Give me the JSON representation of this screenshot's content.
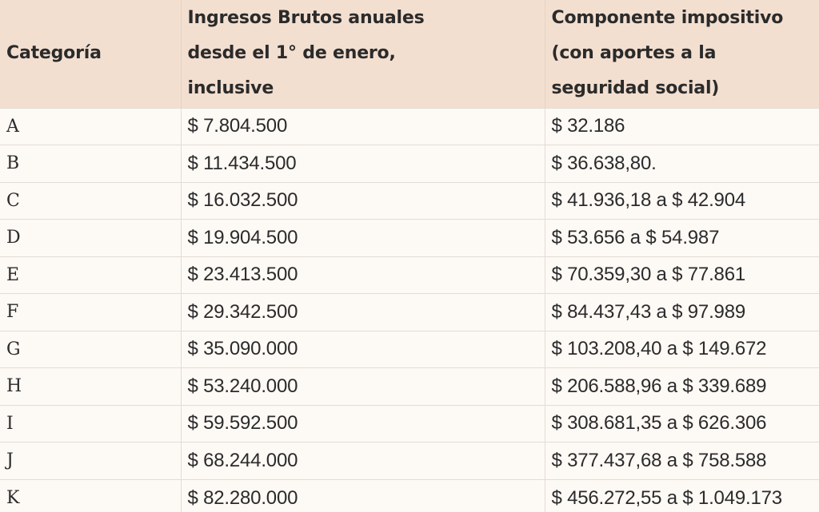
{
  "table": {
    "headers": [
      "Categoría",
      "Ingresos Brutos anuales desde el 1° de enero, inclusive",
      "Componente impositivo (con aportes a la seguridad social)"
    ],
    "rows": [
      [
        "A",
        "$ 7.804.500",
        "$ 32.186"
      ],
      [
        "B",
        "$ 11.434.500",
        "$ 36.638,80."
      ],
      [
        "C",
        "$ 16.032.500",
        "$ 41.936,18 a $ 42.904"
      ],
      [
        "D",
        "$ 19.904.500",
        "$ 53.656 a $ 54.987"
      ],
      [
        "E",
        "$ 23.413.500",
        "$ 70.359,30 a $ 77.861"
      ],
      [
        "F",
        "$ 29.342.500",
        "$ 84.437,43 a $ 97.989"
      ],
      [
        "G",
        "$ 35.090.000",
        "$ 103.208,40 a $ 149.672"
      ],
      [
        "H",
        "$ 53.240.000",
        "$ 206.588,96 a $ 339.689"
      ],
      [
        "I",
        "$ 59.592.500",
        "$ 308.681,35 a $ 626.306"
      ],
      [
        "J",
        "$ 68.244.000",
        "$ 377.437,68 a $ 758.588"
      ],
      [
        "K",
        "$ 82.280.000",
        "$ 456.272,55 a $ 1.049.173"
      ]
    ]
  },
  "colors": {
    "header_bg": "#f3dfd0",
    "body_bg": "#fdf9f5",
    "text": "#2b2b2b",
    "grid": "#e2dcd6"
  }
}
